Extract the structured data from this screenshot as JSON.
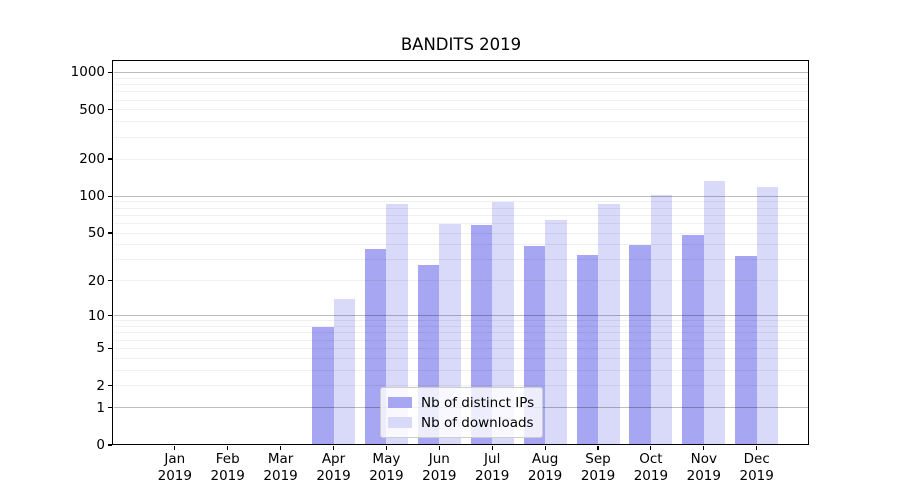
{
  "title": "BANDITS 2019",
  "chart_data": {
    "type": "bar",
    "title": "BANDITS 2019",
    "categories": [
      "Jan",
      "Feb",
      "Mar",
      "Apr",
      "May",
      "Jun",
      "Jul",
      "Aug",
      "Sep",
      "Oct",
      "Nov",
      "Dec"
    ],
    "x_tick_year": "2019",
    "series": [
      {
        "name": "Nb of distinct IPs",
        "color": "#a6a6f2",
        "values": [
          0,
          0,
          0,
          8,
          37,
          27,
          58,
          39,
          33,
          40,
          48,
          32
        ]
      },
      {
        "name": "Nb of downloads",
        "color": "#d9d9f9",
        "values": [
          0,
          0,
          0,
          14,
          87,
          59,
          90,
          64,
          86,
          102,
          134,
          118
        ]
      }
    ],
    "yscale": "log1p",
    "ylim": [
      0,
      1250
    ],
    "y_ticks": [
      0,
      1,
      2,
      5,
      10,
      20,
      50,
      100,
      200,
      500,
      1000
    ],
    "major_grid_values": [
      1,
      10,
      100,
      1000
    ],
    "minor_grid_values": [
      2,
      3,
      4,
      5,
      6,
      7,
      8,
      9,
      20,
      30,
      40,
      50,
      60,
      70,
      80,
      90,
      200,
      300,
      400,
      500,
      600,
      700,
      800,
      900
    ],
    "grid": true,
    "legend_position": "lower center"
  }
}
